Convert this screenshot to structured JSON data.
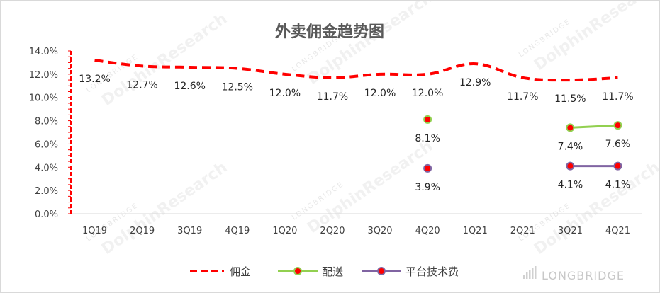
{
  "chart_data": {
    "type": "line",
    "title": "外卖佣金趋势图",
    "categories": [
      "1Q19",
      "2Q19",
      "3Q19",
      "4Q19",
      "1Q20",
      "2Q20",
      "3Q20",
      "4Q20",
      "1Q21",
      "2Q21",
      "3Q21",
      "4Q21"
    ],
    "ylim": [
      0,
      14
    ],
    "yticks": [
      "0.0%",
      "2.0%",
      "4.0%",
      "6.0%",
      "8.0%",
      "10.0%",
      "12.0%",
      "14.0%"
    ],
    "series": [
      {
        "name": "佣金",
        "color": "#ff0000",
        "style": "dashed",
        "values": [
          13.2,
          12.7,
          12.6,
          12.5,
          12.0,
          11.7,
          12.0,
          12.0,
          12.9,
          11.7,
          11.5,
          11.7
        ],
        "labels": [
          "13.2%",
          "12.7%",
          "12.6%",
          "12.5%",
          "12.0%",
          "11.7%",
          "12.0%",
          "12.0%",
          "12.9%",
          "11.7%",
          "11.5%",
          "11.7%"
        ]
      },
      {
        "name": "配送",
        "color": "#92d050",
        "style": "solid-marker",
        "values": [
          null,
          null,
          null,
          null,
          null,
          null,
          null,
          8.1,
          null,
          null,
          7.4,
          7.6
        ],
        "labels": [
          null,
          null,
          null,
          null,
          null,
          null,
          null,
          "8.1%",
          null,
          null,
          "7.4%",
          "7.6%"
        ]
      },
      {
        "name": "平台技术费",
        "color": "#8064a2",
        "style": "solid-marker",
        "values": [
          null,
          null,
          null,
          null,
          null,
          null,
          null,
          3.9,
          null,
          null,
          4.1,
          4.1
        ],
        "labels": [
          null,
          null,
          null,
          null,
          null,
          null,
          null,
          "3.9%",
          null,
          null,
          "4.1%",
          "4.1%"
        ]
      }
    ],
    "legend": "bottom",
    "grid": false,
    "watermark": "DolphinResearch",
    "watermark_small": "LONGBRIDGE",
    "brand_mark": "LONGBRIDGE"
  }
}
